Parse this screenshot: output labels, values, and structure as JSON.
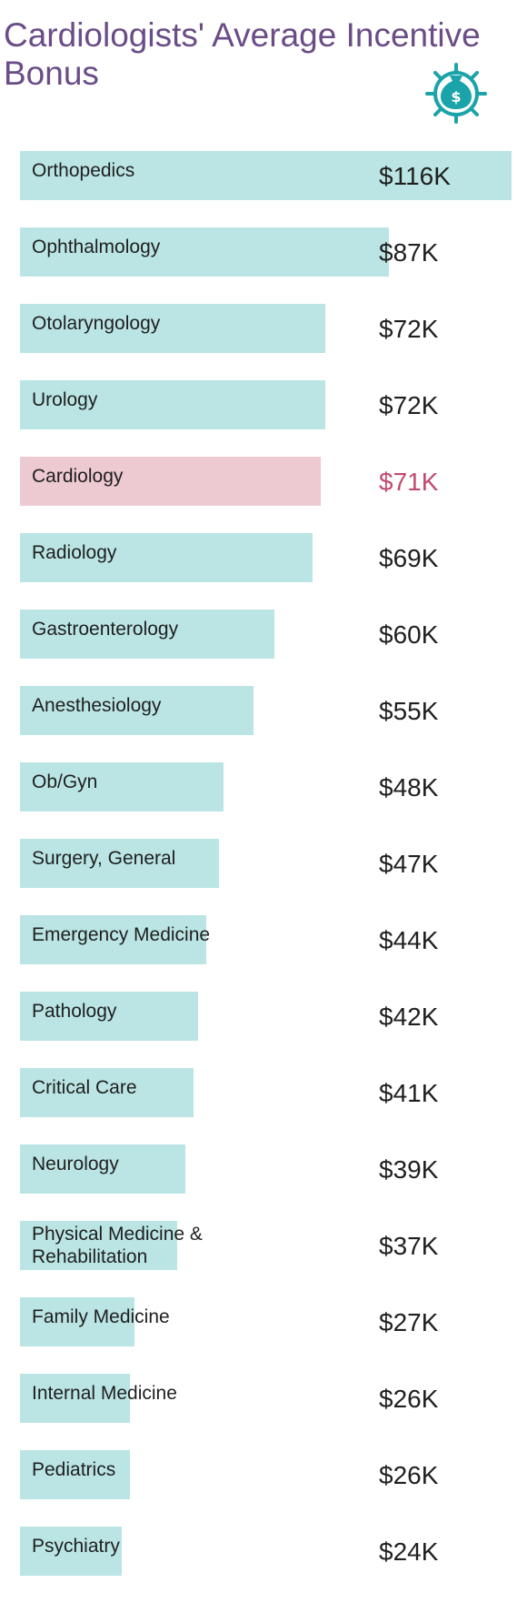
{
  "title": "Cardiologists' Average Incentive Bonus",
  "icon": "money-bag-target-icon",
  "colors": {
    "bar": "#bae5e4",
    "highlight_bar": "#edc9d1",
    "highlight_text": "#c04a6c",
    "title": "#6a4c87",
    "icon": "#1aa3a8"
  },
  "chart_data": {
    "type": "bar",
    "orientation": "horizontal",
    "title": "Cardiologists' Average Incentive Bonus",
    "xlabel": "",
    "ylabel": "",
    "unit": "$K",
    "xlim": [
      0,
      116
    ],
    "grid": false,
    "legend": "none",
    "highlight": "Cardiology",
    "categories": [
      "Orthopedics",
      "Ophthalmology",
      "Otolaryngology",
      "Urology",
      "Cardiology",
      "Radiology",
      "Gastroenterology",
      "Anesthesiology",
      "Ob/Gyn",
      "Surgery, General",
      "Emergency Medicine",
      "Pathology",
      "Critical Care",
      "Neurology",
      "Physical Medicine &\nRehabilitation",
      "Family Medicine",
      "Internal Medicine",
      "Pediatrics",
      "Psychiatry"
    ],
    "values": [
      116,
      87,
      72,
      72,
      71,
      69,
      60,
      55,
      48,
      47,
      44,
      42,
      41,
      39,
      37,
      27,
      26,
      26,
      24
    ],
    "value_labels": [
      "$116K",
      "$87K",
      "$72K",
      "$72K",
      "$71K",
      "$69K",
      "$60K",
      "$55K",
      "$48K",
      "$47K",
      "$44K",
      "$42K",
      "$41K",
      "$39K",
      "$37K",
      "$27K",
      "$26K",
      "$26K",
      "$24K"
    ]
  }
}
